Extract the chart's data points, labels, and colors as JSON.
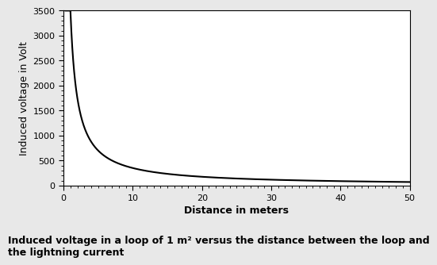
{
  "title": "",
  "xlabel": "Distance in meters",
  "ylabel": "Induced voltage in Volt",
  "caption": "Induced voltage in a loop of 1 m² versus the distance between the loop and\nthe lightning current",
  "xlim": [
    0,
    50
  ],
  "ylim": [
    0,
    3500
  ],
  "xticks": [
    0,
    10,
    20,
    30,
    40,
    50
  ],
  "yticks": [
    0,
    500,
    1000,
    1500,
    2000,
    2500,
    3000,
    3500
  ],
  "line_color": "#000000",
  "line_width": 1.5,
  "background_color": "#e8e8e8",
  "plot_bg_color": "#ffffff",
  "constant": 3500,
  "xlabel_fontsize": 9,
  "ylabel_fontsize": 9,
  "tick_fontsize": 8,
  "caption_fontsize": 9
}
